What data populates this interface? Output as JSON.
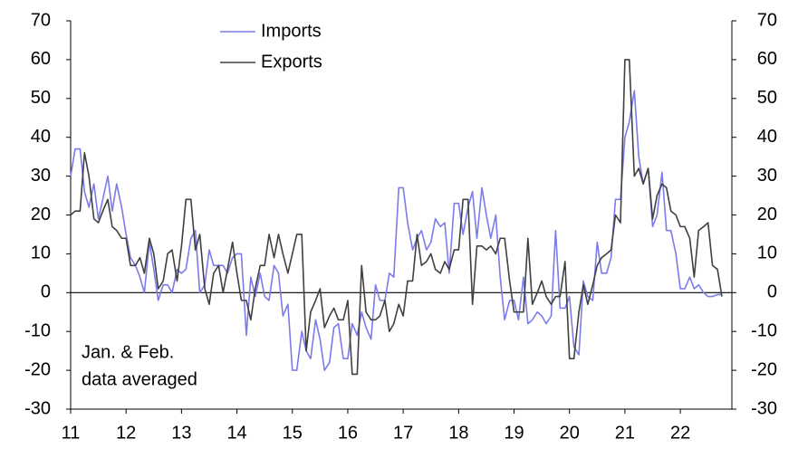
{
  "chart_data": {
    "type": "line",
    "x": [
      11,
      11.08,
      11.17,
      11.25,
      11.33,
      11.42,
      11.5,
      11.58,
      11.67,
      11.75,
      11.83,
      11.92,
      12,
      12.08,
      12.17,
      12.25,
      12.33,
      12.42,
      12.5,
      12.58,
      12.67,
      12.75,
      12.83,
      12.92,
      13,
      13.08,
      13.17,
      13.25,
      13.33,
      13.42,
      13.5,
      13.58,
      13.67,
      13.75,
      13.83,
      13.92,
      14,
      14.08,
      14.17,
      14.25,
      14.33,
      14.42,
      14.5,
      14.58,
      14.67,
      14.75,
      14.83,
      14.92,
      15,
      15.08,
      15.17,
      15.25,
      15.33,
      15.42,
      15.5,
      15.58,
      15.67,
      15.75,
      15.83,
      15.92,
      16,
      16.08,
      16.17,
      16.25,
      16.33,
      16.42,
      16.5,
      16.58,
      16.67,
      16.75,
      16.83,
      16.92,
      17,
      17.08,
      17.17,
      17.25,
      17.33,
      17.42,
      17.5,
      17.58,
      17.67,
      17.75,
      17.83,
      17.92,
      18,
      18.08,
      18.17,
      18.25,
      18.33,
      18.42,
      18.5,
      18.58,
      18.67,
      18.75,
      18.83,
      18.92,
      19,
      19.08,
      19.17,
      19.25,
      19.33,
      19.42,
      19.5,
      19.58,
      19.67,
      19.75,
      19.83,
      19.92,
      20,
      20.08,
      20.17,
      20.25,
      20.33,
      20.42,
      20.5,
      20.58,
      20.67,
      20.75,
      20.83,
      20.92,
      21,
      21.08,
      21.17,
      21.25,
      21.33,
      21.42,
      21.5,
      21.58,
      21.67,
      21.75,
      21.83,
      21.92,
      22,
      22.08,
      22.17,
      22.25,
      22.33,
      22.42,
      22.5,
      22.58,
      22.67,
      22.75
    ],
    "series": [
      {
        "name": "Imports",
        "color": "#7b7bea",
        "values": [
          30,
          37,
          37,
          26,
          22,
          28,
          19,
          24,
          30,
          21,
          28,
          22,
          15,
          9,
          7,
          4,
          0,
          13,
          6,
          -2,
          2,
          2,
          0,
          6,
          5,
          6,
          14,
          16,
          0,
          2,
          11,
          7,
          7,
          7,
          5,
          9,
          10,
          10,
          -11,
          4,
          -1,
          5,
          -1,
          -2,
          7,
          5,
          -6,
          -3,
          -20,
          -20,
          -10,
          -15,
          -17,
          -7,
          -12,
          -20,
          -18,
          -9,
          -8,
          -17,
          -17,
          -8,
          -11,
          -5,
          -9,
          -12,
          2,
          -2,
          -2,
          5,
          4,
          27,
          27,
          18,
          11,
          14,
          16,
          11,
          13,
          19,
          17,
          18,
          5,
          23,
          23,
          15,
          22,
          26,
          14,
          27,
          20,
          14,
          20,
          4,
          -7,
          -2,
          -2,
          -7,
          4,
          -8,
          -7,
          -5,
          -6,
          -8,
          -6,
          16,
          -4,
          -4,
          -1,
          -14,
          -16,
          3,
          -1,
          -2,
          13,
          5,
          5,
          9,
          24,
          24,
          40,
          44,
          52,
          35,
          28,
          32,
          17,
          20,
          31,
          16,
          16,
          10,
          1,
          1,
          4,
          1,
          2,
          0,
          -1,
          -1,
          -0.5,
          -0.5
        ]
      },
      {
        "name": "Exports",
        "color": "#404040",
        "values": [
          20,
          21,
          21,
          36,
          30,
          19,
          18,
          21,
          24,
          17,
          16,
          14,
          14,
          7,
          7,
          9,
          5,
          14,
          10,
          1,
          3,
          10,
          11,
          3,
          12,
          24,
          24,
          11,
          15,
          1,
          -3,
          5,
          7,
          0,
          6,
          13,
          5,
          -2,
          -2,
          -7,
          1,
          7,
          7,
          15,
          9,
          15,
          10,
          5,
          10,
          15,
          15,
          -15,
          -5,
          -2,
          1,
          -9,
          -6,
          -4,
          -7,
          -7,
          -2,
          -21,
          -21,
          7,
          -5,
          -7,
          -7,
          -6,
          -2,
          -10,
          -8,
          -3,
          -6,
          3,
          3,
          15,
          7,
          8,
          10,
          6,
          5,
          8,
          6,
          11,
          11,
          24,
          24,
          -3,
          12,
          12,
          11,
          12,
          10,
          14,
          14,
          3,
          -5,
          -5,
          -5,
          14,
          -3,
          0,
          3,
          -1,
          -3,
          -1,
          -1,
          8,
          -17,
          -17,
          -5,
          2,
          -3,
          2,
          7,
          9,
          10,
          11,
          20,
          18,
          60,
          60,
          30,
          32,
          28,
          32,
          19,
          25,
          28,
          27,
          21,
          20,
          17,
          17,
          14,
          4,
          16,
          17,
          18,
          7,
          6,
          -1
        ]
      }
    ],
    "annotation": [
      "Jan. & Feb.",
      "data averaged"
    ],
    "xlim": [
      11,
      22.93
    ],
    "xticks": [
      11,
      12,
      13,
      14,
      15,
      16,
      17,
      18,
      19,
      20,
      21,
      22
    ],
    "ylim": [
      -30,
      70
    ],
    "yticks": [
      -30,
      -20,
      -10,
      0,
      10,
      20,
      30,
      40,
      50,
      60,
      70
    ],
    "y2lim": [
      -30,
      70
    ],
    "y2ticks": [
      -30,
      -20,
      -10,
      0,
      10,
      20,
      30,
      40,
      50,
      60,
      70
    ],
    "grid": false
  }
}
